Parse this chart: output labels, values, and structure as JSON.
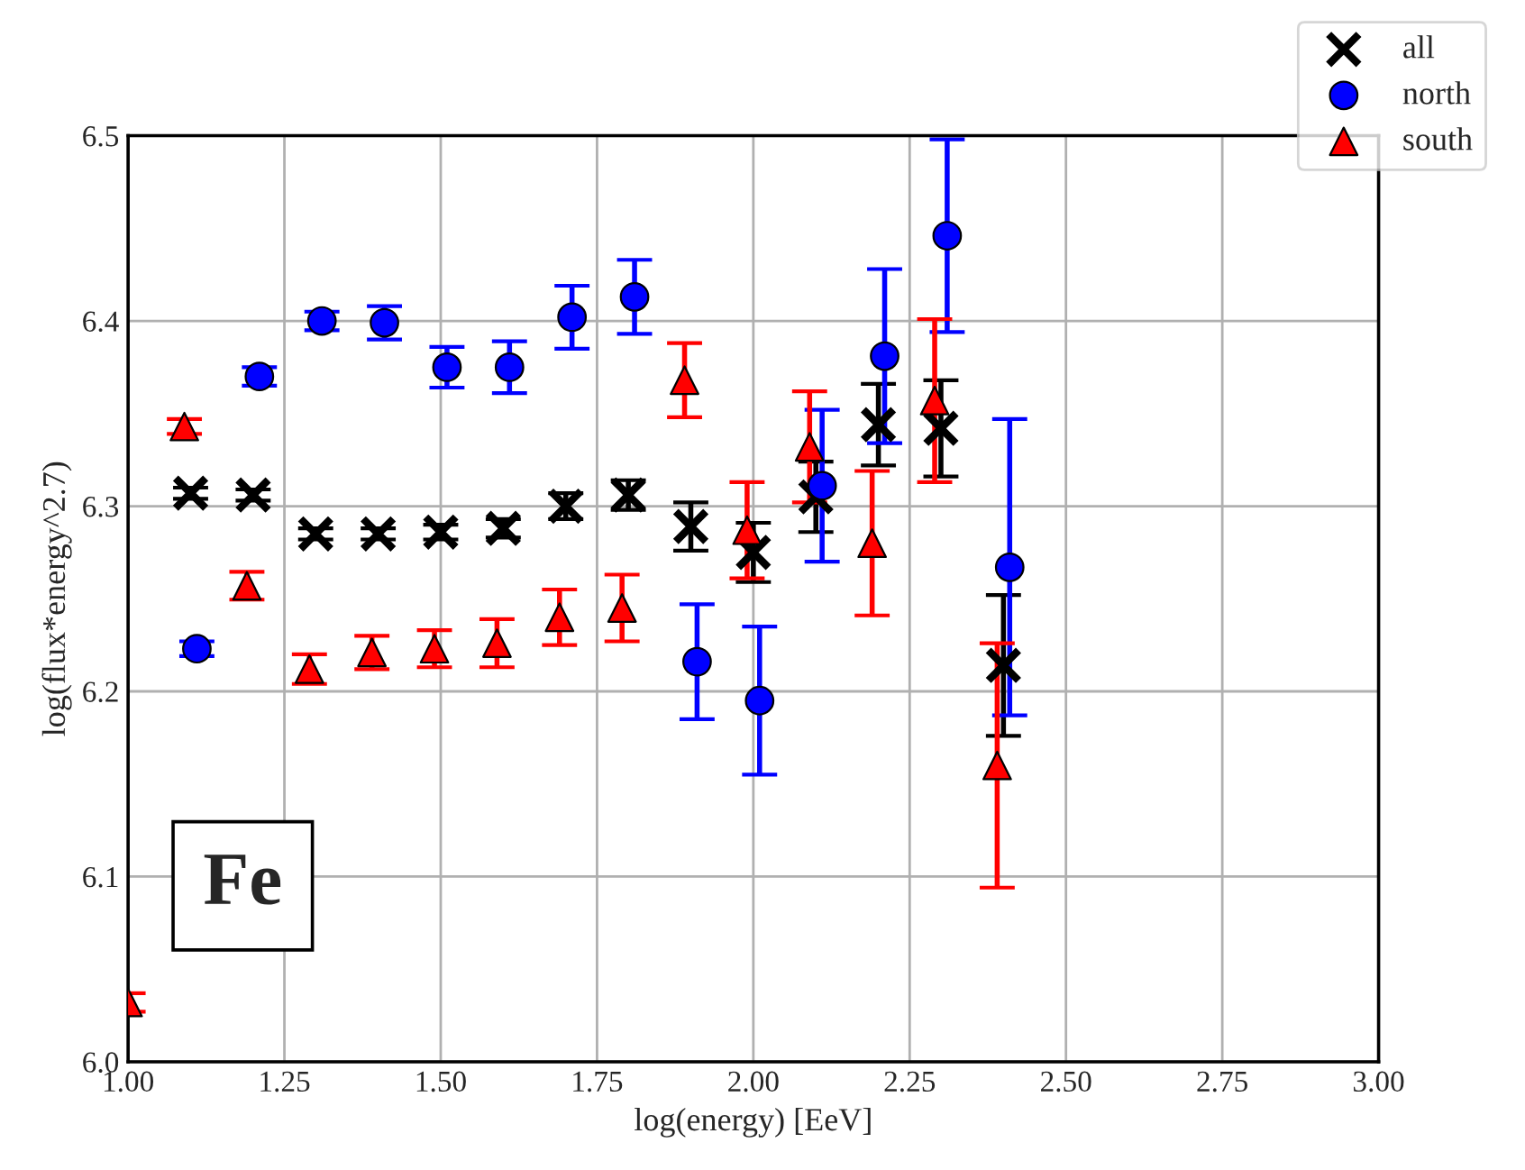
{
  "chart_data": {
    "type": "scatter",
    "xlabel": "log(energy) [EeV]",
    "ylabel": "log(flux*energy^2.7)",
    "xlim": [
      1.0,
      3.0
    ],
    "ylim": [
      6.0,
      6.5
    ],
    "xticks": [
      {
        "value": 1.0,
        "label": "1.00"
      },
      {
        "value": 1.25,
        "label": "1.25"
      },
      {
        "value": 1.5,
        "label": "1.50"
      },
      {
        "value": 1.75,
        "label": "1.75"
      },
      {
        "value": 2.0,
        "label": "2.00"
      },
      {
        "value": 2.25,
        "label": "2.25"
      },
      {
        "value": 2.5,
        "label": "2.50"
      },
      {
        "value": 2.75,
        "label": "2.75"
      },
      {
        "value": 3.0,
        "label": "3.00"
      }
    ],
    "yticks": [
      {
        "value": 6.0,
        "label": "6.0"
      },
      6.1,
      6.2,
      6.3,
      6.4,
      6.5
    ],
    "grid": true,
    "legend": "top right",
    "annotations": [
      "Fe"
    ],
    "series": [
      {
        "name": "all",
        "color": "#000000",
        "marker": "cross",
        "x": [
          1.1,
          1.2,
          1.3,
          1.4,
          1.5,
          1.6,
          1.7,
          1.8,
          1.9,
          2.0,
          2.1,
          2.2,
          2.3,
          2.4
        ],
        "values": [
          6.307,
          6.306,
          6.285,
          6.285,
          6.286,
          6.288,
          6.3,
          6.306,
          6.289,
          6.275,
          6.305,
          6.344,
          6.342,
          6.214
        ],
        "errors": [
          0.003,
          0.003,
          0.003,
          0.003,
          0.004,
          0.005,
          0.007,
          0.008,
          0.013,
          0.016,
          0.019,
          0.022,
          0.026,
          0.038
        ]
      },
      {
        "name": "north",
        "color": "#0000ff",
        "marker": "circle",
        "x": [
          1.11,
          1.21,
          1.31,
          1.41,
          1.51,
          1.61,
          1.71,
          1.81,
          1.91,
          2.01,
          2.11,
          2.21,
          2.31,
          2.41
        ],
        "values": [
          6.223,
          6.37,
          6.4,
          6.399,
          6.375,
          6.375,
          6.402,
          6.413,
          6.216,
          6.195,
          6.311,
          6.381,
          6.446,
          6.267
        ],
        "errors": [
          0.004,
          0.005,
          0.005,
          0.009,
          0.011,
          0.014,
          0.017,
          0.02,
          0.031,
          0.04,
          0.041,
          0.047,
          0.052,
          0.08
        ]
      },
      {
        "name": "south",
        "color": "#ff0000",
        "marker": "triangle",
        "x": [
          1.0,
          1.09,
          1.19,
          1.29,
          1.39,
          1.49,
          1.59,
          1.69,
          1.79,
          1.89,
          1.99,
          2.09,
          2.19,
          2.29,
          2.39
        ],
        "values": [
          6.032,
          6.343,
          6.257,
          6.212,
          6.221,
          6.223,
          6.226,
          6.24,
          6.245,
          6.368,
          6.287,
          6.332,
          6.28,
          6.357,
          6.16
        ],
        "errors": [
          0.005,
          0.004,
          0.0075,
          0.008,
          0.009,
          0.01,
          0.013,
          0.015,
          0.018,
          0.02,
          0.026,
          0.03,
          0.039,
          0.044,
          0.066
        ]
      }
    ]
  }
}
